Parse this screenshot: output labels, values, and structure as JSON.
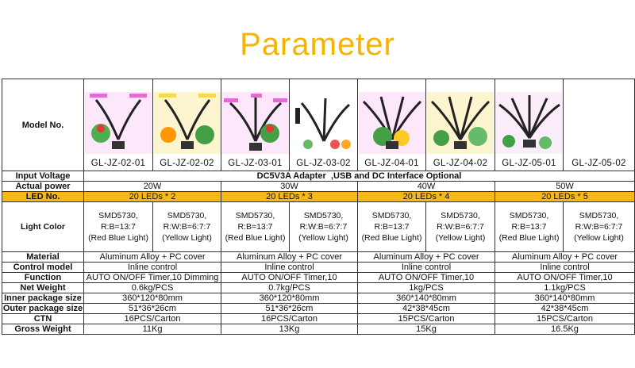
{
  "title": "Parameter",
  "row_labels": {
    "model": "Model No.",
    "input_voltage": "Input Voltage",
    "actual_power": "Actual power",
    "led_no": "LED No.",
    "light_color": "Light Color",
    "material": "Material",
    "control_model": "Control model",
    "function": "Function",
    "net_weight": "Net Weight",
    "inner_package": "Inner package size",
    "outer_package": "Outer package size",
    "ctn": "CTN",
    "gross_weight": "Gross Weight"
  },
  "models": [
    "GL-JZ-02-01",
    "GL-JZ-02-02",
    "GL-JZ-03-01",
    "GL-JZ-03-02",
    "GL-JZ-04-01",
    "GL-JZ-04-02",
    "GL-JZ-05-01",
    "GL-JZ-05-02"
  ],
  "input_voltage": "DC5V3A Adapter  ,USB and DC Interface Optional",
  "groups": [
    {
      "power": "20W",
      "leds": "20 LEDs * 2",
      "colors": [
        [
          "SMD5730,",
          "R:B=13:7",
          "(Red Blue Light)"
        ],
        [
          "SMD5730,",
          "R:W:B=6:7:7",
          "(Yellow Light)"
        ]
      ],
      "material": "Aluminum Alloy + PC cover",
      "control": "Inline control",
      "function": "AUTO ON/OFF Timer,10 Dimming",
      "net_weight": "0.6kg/PCS",
      "inner": "360*120*80mm",
      "outer": "51*36*26cm",
      "ctn": "16PCS/Carton",
      "gross": "11Kg"
    },
    {
      "power": "30W",
      "leds": "20 LEDs * 3",
      "colors": [
        [
          "SMD5730,",
          "R:B=13:7",
          "(Red Blue Light)"
        ],
        [
          "SMD5730,",
          "R:W:B=6:7:7",
          "(Yellow Light)"
        ]
      ],
      "material": "Aluminum Alloy + PC cover",
      "control": "Inline control",
      "function": "AUTO ON/OFF Timer,10",
      "net_weight": "0.7kg/PCS",
      "inner": "360*120*80mm",
      "outer": "51*36*26cm",
      "ctn": "16PCS/Carton",
      "gross": "13Kg"
    },
    {
      "power": "40W",
      "leds": "20 LEDs * 4",
      "colors": [
        [
          "SMD5730,",
          "R:B=13:7",
          "(Red Blue Light)"
        ],
        [
          "SMD5730,",
          "R:W:B=6:7:7",
          "(Yellow Light)"
        ]
      ],
      "material": "Aluminum Alloy + PC cover",
      "control": "Inline control",
      "function": "AUTO ON/OFF Timer,10",
      "net_weight": "1kg/PCS",
      "inner": "360*140*80mm",
      "outer": "42*38*45cm",
      "ctn": "15PCS/Carton",
      "gross": "15Kg"
    },
    {
      "power": "50W",
      "leds": "20 LEDs * 5",
      "colors": [
        [
          "SMD5730,",
          "R:B=13:7",
          "(Red Blue Light)"
        ],
        [
          "SMD5730,",
          "R:W:B=6:7:7",
          "(Yellow Light)"
        ]
      ],
      "material": "Aluminum Alloy + PC cover",
      "control": "Inline control",
      "function": "AUTO ON/OFF Timer,10",
      "net_weight": "1.1kg/PCS",
      "inner": "360*140*80mm",
      "outer": "42*38*45cm",
      "ctn": "15PCS/Carton",
      "gross": "16.5Kg"
    }
  ],
  "colors": {
    "title": "#f4b400",
    "led_highlight": "#f7b918",
    "pink_light": "#e36bd9",
    "yellow_light": "#f6d84a"
  }
}
